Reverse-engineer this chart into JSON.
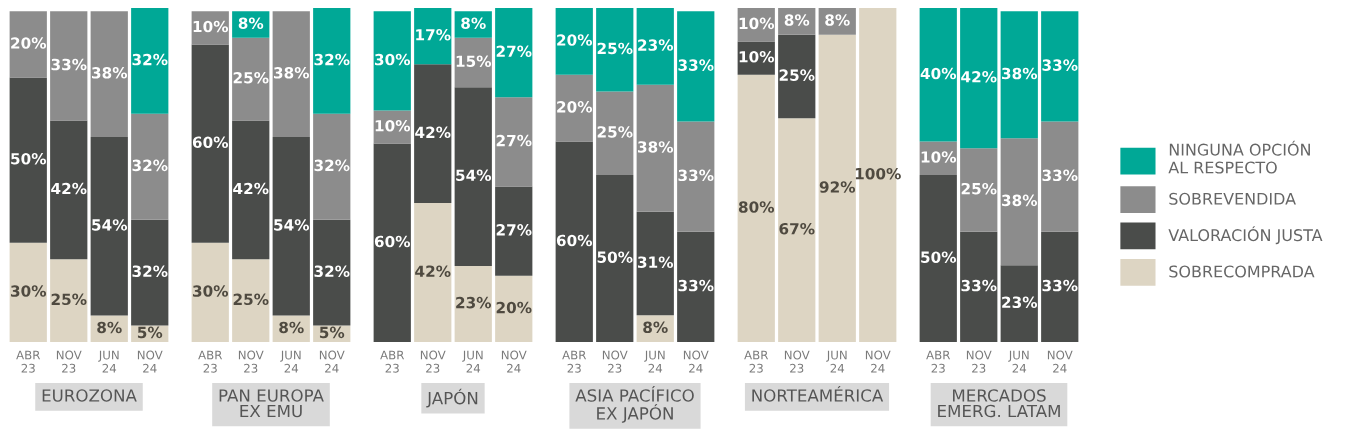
{
  "chart_data": [
    {
      "type": "bar",
      "stacked": true,
      "xlabel": "EUROZONA",
      "categories": [
        "ABR\n23",
        "NOV\n23",
        "JUN\n24",
        "NOV\n24"
      ],
      "ylim": [
        0,
        101
      ],
      "tick_labels": "x",
      "grid": false,
      "legend": false,
      "series": [
        {
          "color": "#ddd5c3",
          "values": [
            30,
            25,
            8,
            5
          ],
          "value_labels": [
            "30%",
            "25%",
            "8%",
            "5%"
          ]
        },
        {
          "color": "#4a4c4a",
          "values": [
            50,
            42,
            54,
            32
          ],
          "value_labels": [
            "50%",
            "42%",
            "54%",
            "32%"
          ]
        },
        {
          "color": "#8c8c8c",
          "values": [
            20,
            33,
            38,
            32
          ],
          "value_labels": [
            "20%",
            "33%",
            "38%",
            "32%"
          ]
        },
        {
          "color": "#00a896",
          "values": [
            0,
            0,
            0,
            32
          ],
          "value_labels": [
            null,
            null,
            null,
            "32%"
          ]
        }
      ]
    },
    {
      "type": "bar",
      "stacked": true,
      "xlabel": "PAN EUROPA\nEX EMU",
      "categories": [
        "ABR\n23",
        "NOV\n23",
        "JUN\n24",
        "NOV\n24"
      ],
      "ylim": [
        0,
        101
      ],
      "tick_labels": "x",
      "grid": false,
      "legend": false,
      "series": [
        {
          "color": "#ddd5c3",
          "values": [
            30,
            25,
            8,
            5
          ],
          "value_labels": [
            "30%",
            "25%",
            "8%",
            "5%"
          ]
        },
        {
          "color": "#4a4c4a",
          "values": [
            60,
            42,
            54,
            32
          ],
          "value_labels": [
            "60%",
            "42%",
            "54%",
            "32%"
          ]
        },
        {
          "color": "#8c8c8c",
          "values": [
            10,
            25,
            38,
            32
          ],
          "value_labels": [
            "10%",
            "25%",
            "38%",
            "32%"
          ]
        },
        {
          "color": "#00a896",
          "values": [
            0,
            8,
            0,
            32
          ],
          "value_labels": [
            null,
            "8%",
            null,
            "32%"
          ]
        }
      ]
    },
    {
      "type": "bar",
      "stacked": true,
      "xlabel": "JAPÓN",
      "categories": [
        "ABR\n23",
        "NOV\n23",
        "JUN\n24",
        "NOV\n24"
      ],
      "ylim": [
        0,
        101
      ],
      "tick_labels": "x",
      "grid": false,
      "legend": false,
      "series": [
        {
          "color": "#ddd5c3",
          "values": [
            0,
            42,
            23,
            20
          ],
          "value_labels": [
            null,
            "42%",
            "23%",
            "20%"
          ]
        },
        {
          "color": "#4a4c4a",
          "values": [
            60,
            42,
            54,
            27
          ],
          "value_labels": [
            "60%",
            "42%",
            "54%",
            "27%"
          ]
        },
        {
          "color": "#8c8c8c",
          "values": [
            10,
            0,
            15,
            27
          ],
          "value_labels": [
            "10%",
            null,
            "15%",
            "27%"
          ]
        },
        {
          "color": "#00a896",
          "values": [
            30,
            17,
            8,
            27
          ],
          "value_labels": [
            "30%",
            "17%",
            "8%",
            "27%"
          ]
        }
      ]
    },
    {
      "type": "bar",
      "stacked": true,
      "xlabel": "ASIA PACÍFICO\nEX JAPÓN",
      "categories": [
        "ABR\n23",
        "NOV\n23",
        "JUN\n24",
        "NOV\n24"
      ],
      "ylim": [
        0,
        100
      ],
      "tick_labels": "x",
      "grid": false,
      "legend": false,
      "series": [
        {
          "color": "#ddd5c3",
          "values": [
            0,
            0,
            8,
            0
          ],
          "value_labels": [
            null,
            null,
            "8%",
            null
          ]
        },
        {
          "color": "#4a4c4a",
          "values": [
            60,
            50,
            31,
            33
          ],
          "value_labels": [
            "60%",
            "50%",
            "31%",
            "33%"
          ]
        },
        {
          "color": "#8c8c8c",
          "values": [
            20,
            25,
            38,
            33
          ],
          "value_labels": [
            "20%",
            "25%",
            "38%",
            "33%"
          ]
        },
        {
          "color": "#00a896",
          "values": [
            20,
            25,
            23,
            33
          ],
          "value_labels": [
            "20%",
            "25%",
            "23%",
            "33%"
          ]
        }
      ]
    },
    {
      "type": "bar",
      "stacked": true,
      "xlabel": "NORTEAMÉRICA",
      "categories": [
        "ABR\n23",
        "NOV\n23",
        "JUN\n24",
        "NOV\n24"
      ],
      "ylim": [
        0,
        100
      ],
      "tick_labels": "x",
      "grid": false,
      "legend": false,
      "series": [
        {
          "color": "#ddd5c3",
          "values": [
            80,
            67,
            92,
            100
          ],
          "value_labels": [
            "80%",
            "67%",
            "92%",
            "100%"
          ]
        },
        {
          "color": "#4a4c4a",
          "values": [
            10,
            25,
            0,
            0
          ],
          "value_labels": [
            "10%",
            "25%",
            null,
            null
          ]
        },
        {
          "color": "#8c8c8c",
          "values": [
            10,
            8,
            8,
            0
          ],
          "value_labels": [
            "10%",
            "8%",
            "8%",
            null
          ]
        },
        {
          "color": "#00a896",
          "values": [
            0,
            0,
            0,
            0
          ],
          "value_labels": [
            null,
            null,
            null,
            null
          ]
        }
      ]
    },
    {
      "type": "bar",
      "stacked": true,
      "xlabel": "MERCADOS\nEMERG. LATAM",
      "categories": [
        "ABR\n23",
        "NOV\n23",
        "JUN\n24",
        "NOV\n24"
      ],
      "ylim": [
        0,
        100
      ],
      "tick_labels": "x",
      "grid": false,
      "legend": "right",
      "series": [
        {
          "name": "SOBRECOMPRADA",
          "color": "#ddd5c3",
          "values": [
            0,
            0,
            0,
            0
          ],
          "value_labels": [
            null,
            null,
            null,
            null
          ]
        },
        {
          "name": "VALORACIÓN JUSTA",
          "color": "#4a4c4a",
          "values": [
            50,
            33,
            23,
            33
          ],
          "value_labels": [
            "50%",
            "33%",
            "23%",
            "33%"
          ]
        },
        {
          "name": "SOBREVENDIDA",
          "color": "#8c8c8c",
          "values": [
            10,
            25,
            38,
            33
          ],
          "value_labels": [
            "10%",
            "25%",
            "38%",
            "33%"
          ]
        },
        {
          "name": "NINGUNA OPCIÓN\nAL RESPECTO",
          "color": "#00a896",
          "values": [
            40,
            42,
            38,
            33
          ],
          "value_labels": [
            "40%",
            "42%",
            "38%",
            "33%"
          ]
        }
      ]
    }
  ]
}
